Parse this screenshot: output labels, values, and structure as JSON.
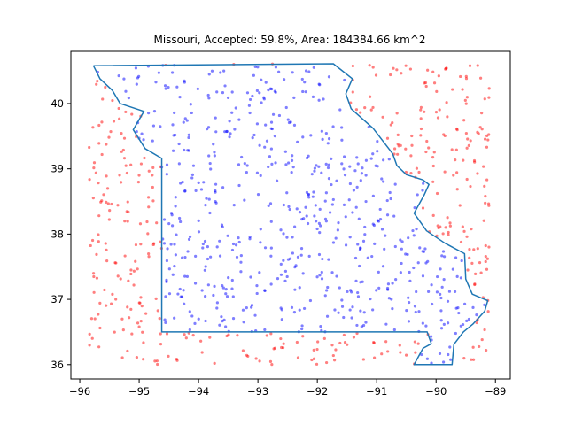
{
  "chart_data": {
    "type": "scatter",
    "title": "Missouri, Accepted: 59.8%, Area: 184384.66 km^2",
    "xlabel": "",
    "ylabel": "",
    "xlim": [
      -96.15,
      -88.75
    ],
    "ylim": [
      35.78,
      40.8
    ],
    "xticks": [
      -96,
      -95,
      -94,
      -93,
      -92,
      -91,
      -90,
      -89
    ],
    "yticks": [
      36,
      37,
      38,
      39,
      40
    ],
    "grid": false,
    "legend": "none",
    "sampling": {
      "x_range": [
        -95.85,
        -89.1
      ],
      "y_range": [
        36.0,
        40.62
      ],
      "total_points": 1000,
      "accepted_fraction": 0.598
    },
    "series": [
      {
        "role": "accepted",
        "color": "#0000ff",
        "alpha": 0.5
      },
      {
        "role": "rejected",
        "color": "#ff0000",
        "alpha": 0.5
      },
      {
        "role": "boundary",
        "color": "#1f77b4"
      }
    ],
    "boundary": [
      [
        -95.77,
        40.58
      ],
      [
        -91.73,
        40.61
      ],
      [
        -91.41,
        40.38
      ],
      [
        -91.52,
        40.15
      ],
      [
        -91.43,
        39.92
      ],
      [
        -91.06,
        39.62
      ],
      [
        -90.73,
        39.23
      ],
      [
        -90.66,
        39.05
      ],
      [
        -90.5,
        38.91
      ],
      [
        -90.22,
        38.83
      ],
      [
        -90.12,
        38.76
      ],
      [
        -90.2,
        38.6
      ],
      [
        -90.37,
        38.32
      ],
      [
        -90.16,
        38.05
      ],
      [
        -89.85,
        37.86
      ],
      [
        -89.52,
        37.7
      ],
      [
        -89.5,
        37.31
      ],
      [
        -89.39,
        37.08
      ],
      [
        -89.13,
        36.98
      ],
      [
        -89.18,
        36.82
      ],
      [
        -89.38,
        36.62
      ],
      [
        -89.54,
        36.5
      ],
      [
        -89.7,
        36.31
      ],
      [
        -89.73,
        36.0
      ],
      [
        -90.37,
        36.0
      ],
      [
        -90.22,
        36.25
      ],
      [
        -90.08,
        36.32
      ],
      [
        -90.15,
        36.5
      ],
      [
        -94.62,
        36.5
      ],
      [
        -94.62,
        39.16
      ],
      [
        -94.9,
        39.31
      ],
      [
        -95.1,
        39.6
      ],
      [
        -94.92,
        39.88
      ],
      [
        -95.32,
        40.0
      ],
      [
        -95.45,
        40.2
      ],
      [
        -95.66,
        40.38
      ],
      [
        -95.77,
        40.58
      ]
    ]
  }
}
